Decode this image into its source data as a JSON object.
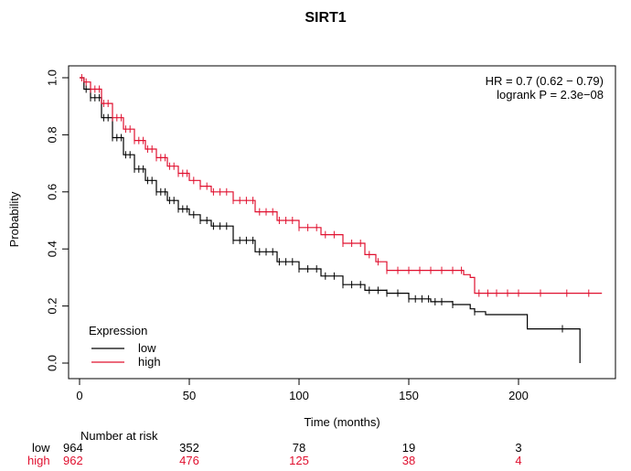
{
  "chart_data": {
    "type": "line",
    "title": "SIRT1",
    "xlabel": "Time (months)",
    "ylabel": "Probability",
    "xlim": [
      0,
      240
    ],
    "ylim": [
      0,
      1.0
    ],
    "x_ticks": [
      0,
      50,
      100,
      150,
      200
    ],
    "y_ticks": [
      "0.0",
      "0.2",
      "0.4",
      "0.6",
      "0.8",
      "1.0"
    ],
    "grid": false,
    "stats": {
      "hr": "HR = 0.7 (0.62 − 0.79)",
      "logrank": "logrank P = 2.3e−08"
    },
    "legend": {
      "title": "Expression",
      "position": "bottom-left",
      "entries": [
        {
          "label": "low",
          "color": "#000000"
        },
        {
          "label": "high",
          "color": "#e0102f"
        }
      ]
    },
    "series": [
      {
        "name": "low",
        "color": "#000000",
        "x": [
          0,
          2,
          5,
          10,
          15,
          20,
          25,
          30,
          35,
          40,
          45,
          50,
          55,
          60,
          70,
          80,
          90,
          100,
          110,
          120,
          130,
          140,
          150,
          160,
          170,
          178,
          180,
          185,
          195,
          204,
          210,
          220,
          228
        ],
        "y": [
          1.0,
          0.96,
          0.93,
          0.86,
          0.79,
          0.73,
          0.68,
          0.64,
          0.6,
          0.57,
          0.54,
          0.52,
          0.5,
          0.48,
          0.43,
          0.39,
          0.355,
          0.33,
          0.305,
          0.275,
          0.255,
          0.245,
          0.225,
          0.215,
          0.205,
          0.19,
          0.18,
          0.17,
          0.17,
          0.12,
          0.12,
          0.12,
          0.0
        ],
        "censor_x": [
          3,
          5,
          7,
          9,
          11,
          13,
          15,
          17,
          19,
          21,
          23,
          25,
          27,
          29,
          31,
          33,
          35,
          37,
          39,
          41,
          43,
          45,
          47,
          49,
          52,
          55,
          58,
          61,
          64,
          67,
          70,
          73,
          76,
          79,
          82,
          85,
          88,
          91,
          94,
          97,
          100,
          104,
          108,
          112,
          116,
          120,
          124,
          128,
          132,
          136,
          140,
          145,
          150,
          153,
          156,
          159,
          162,
          165,
          170,
          180,
          220
        ]
      },
      {
        "name": "high",
        "color": "#e0102f",
        "x": [
          0,
          2,
          5,
          10,
          15,
          20,
          25,
          30,
          35,
          40,
          45,
          50,
          55,
          60,
          70,
          80,
          90,
          100,
          110,
          120,
          130,
          135,
          140,
          150,
          160,
          170,
          175,
          178,
          180,
          190,
          200,
          220,
          238
        ],
        "y": [
          1.0,
          0.985,
          0.96,
          0.91,
          0.86,
          0.82,
          0.78,
          0.75,
          0.72,
          0.69,
          0.665,
          0.64,
          0.62,
          0.6,
          0.57,
          0.53,
          0.5,
          0.475,
          0.45,
          0.42,
          0.38,
          0.355,
          0.325,
          0.325,
          0.325,
          0.325,
          0.31,
          0.3,
          0.245,
          0.245,
          0.245,
          0.245,
          0.245
        ],
        "censor_x": [
          1,
          3,
          5,
          7,
          9,
          11,
          13,
          15,
          17,
          19,
          21,
          23,
          25,
          27,
          29,
          31,
          33,
          35,
          37,
          39,
          41,
          43,
          45,
          47,
          49,
          52,
          55,
          58,
          61,
          64,
          67,
          70,
          73,
          76,
          79,
          82,
          85,
          88,
          91,
          94,
          97,
          100,
          104,
          108,
          112,
          116,
          120,
          124,
          128,
          132,
          136,
          140,
          145,
          150,
          155,
          160,
          165,
          170,
          174,
          182,
          186,
          190,
          195,
          200,
          210,
          222,
          232
        ]
      }
    ],
    "risk_table": {
      "title": "Number at risk",
      "times": [
        0,
        50,
        100,
        150,
        200
      ],
      "rows": [
        {
          "label": "low",
          "color": "#000000",
          "values": [
            "964",
            "352",
            "78",
            "19",
            "3"
          ]
        },
        {
          "label": "high",
          "color": "#e0102f",
          "values": [
            "962",
            "476",
            "125",
            "38",
            "4"
          ]
        }
      ]
    }
  }
}
